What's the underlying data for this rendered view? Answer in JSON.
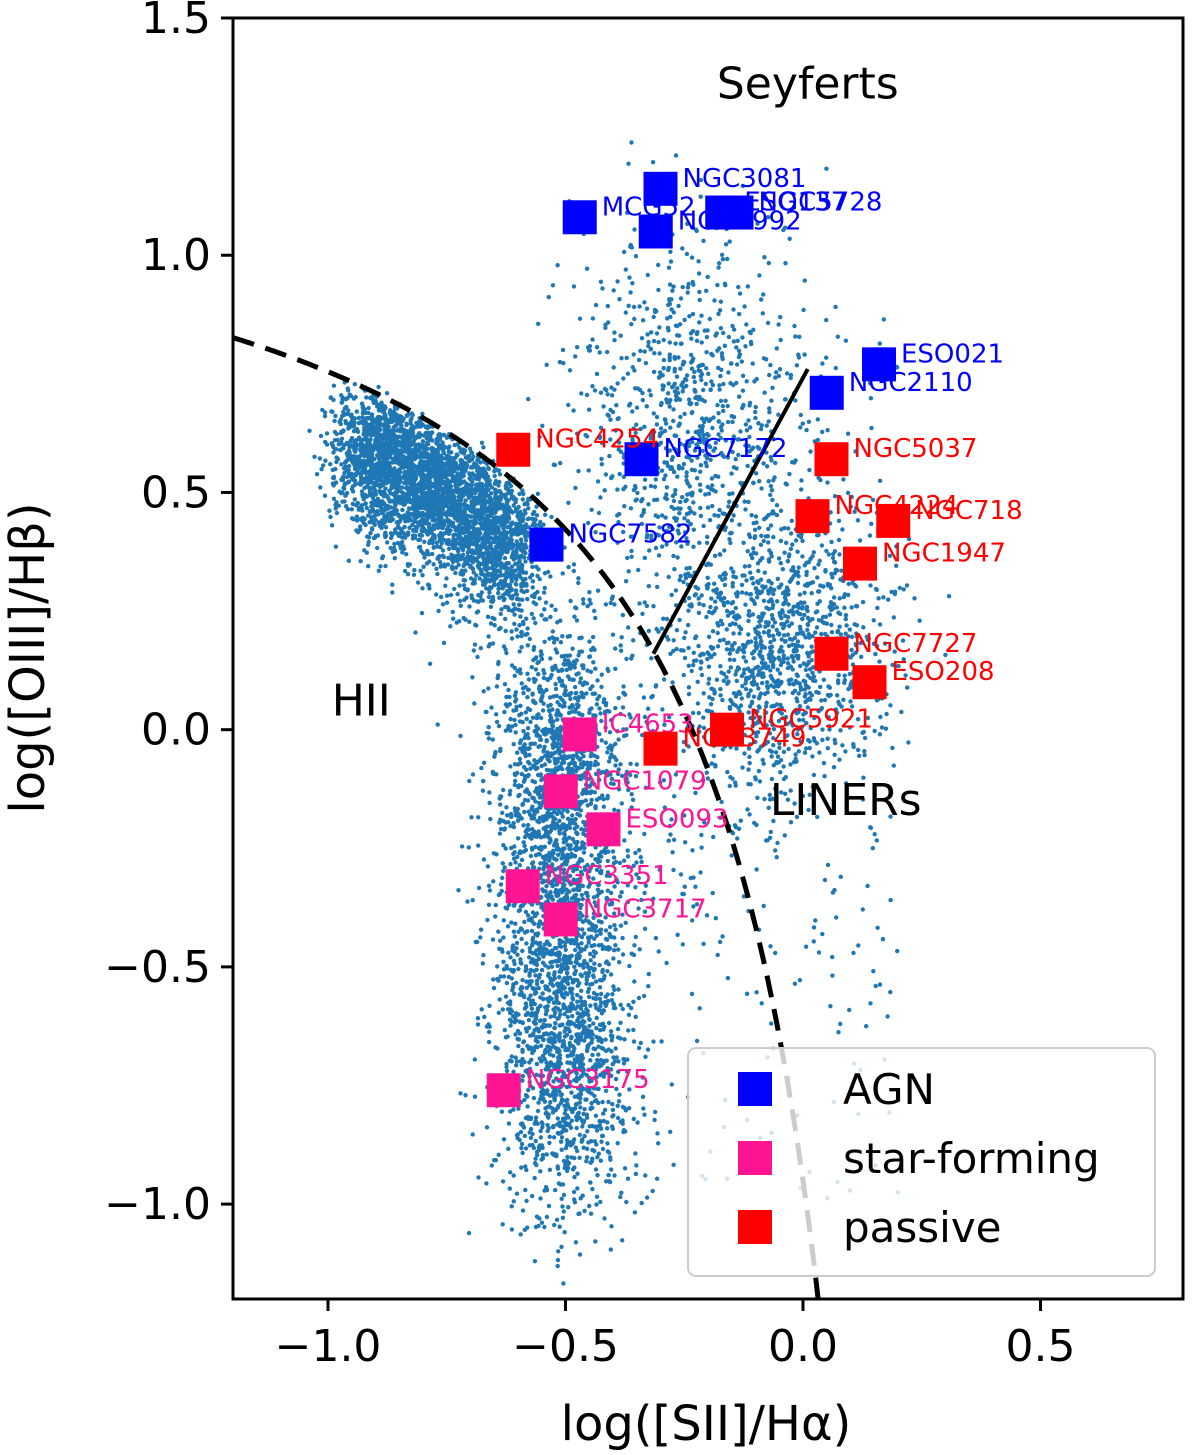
{
  "chart_data": {
    "type": "scatter",
    "xlabel": "log([SII]/Hα)",
    "ylabel": "log([OIII]/Hβ)",
    "xlim": [
      -1.2,
      0.8
    ],
    "ylim": [
      -1.2,
      1.5
    ],
    "xticks": [
      -1.0,
      -0.5,
      0.0,
      0.5
    ],
    "yticks": [
      -1.0,
      -0.5,
      0.0,
      0.5,
      1.0,
      1.5
    ],
    "xtick_labels": [
      "−1.0",
      "−0.5",
      "0.0",
      "0.5"
    ],
    "ytick_labels": [
      "−1.0",
      "−0.5",
      "0.0",
      "0.5",
      "1.0",
      "1.5"
    ],
    "grid": false,
    "legend_position": "bottom-right",
    "colors": {
      "background_points": "#1f77b4",
      "AGN": "#0000ff",
      "star-forming": "#ff1493",
      "passive": "#ff0000",
      "lines": "#000000"
    },
    "region_labels": [
      {
        "text": "Seyferts",
        "x": 0.01,
        "y": 1.33
      },
      {
        "text": "HII",
        "x": -0.93,
        "y": 0.03
      },
      {
        "text": "LINERs",
        "x": 0.09,
        "y": -0.18
      }
    ],
    "demarcation_lines": [
      {
        "name": "HII-boundary",
        "style": "dashed",
        "description": "Kewley 2001 maximum starburst line: y = 0.72/(x-0.32)+1.30 for x<0.05"
      },
      {
        "name": "Seyfert-LINER",
        "style": "solid",
        "points": [
          [
            -0.315,
            0.16
          ],
          [
            0.01,
            0.76
          ]
        ]
      }
    ],
    "background_sample": {
      "description": "dense SDSS-like galaxy cloud",
      "count": 9000
    },
    "legend": [
      {
        "label": "AGN",
        "color": "#0000ff"
      },
      {
        "label": "star-forming",
        "color": "#ff1493"
      },
      {
        "label": "passive",
        "color": "#ff0000"
      }
    ],
    "series": [
      {
        "name": "AGN",
        "color": "#0000ff",
        "points": [
          {
            "label": "NGC3081",
            "x": -0.3,
            "y": 1.14
          },
          {
            "label": "MCG52",
            "x": -0.47,
            "y": 1.08
          },
          {
            "label": "NGC2992",
            "x": -0.31,
            "y": 1.05
          },
          {
            "label": "ESO137",
            "x": -0.17,
            "y": 1.09
          },
          {
            "label": "NGC5728",
            "x": -0.14,
            "y": 1.09
          },
          {
            "label": "ESO021",
            "x": 0.16,
            "y": 0.77
          },
          {
            "label": "NGC2110",
            "x": 0.05,
            "y": 0.71
          },
          {
            "label": "NGC7172",
            "x": -0.34,
            "y": 0.57
          },
          {
            "label": "NGC7582",
            "x": -0.54,
            "y": 0.39
          }
        ]
      },
      {
        "name": "star-forming",
        "color": "#ff1493",
        "points": [
          {
            "label": "IC4653",
            "x": -0.47,
            "y": -0.01
          },
          {
            "label": "NGC1079",
            "x": -0.51,
            "y": -0.13
          },
          {
            "label": "ESO093",
            "x": -0.42,
            "y": -0.21
          },
          {
            "label": "NGC3351",
            "x": -0.59,
            "y": -0.33
          },
          {
            "label": "NGC3717",
            "x": -0.51,
            "y": -0.4
          },
          {
            "label": "NGC3175",
            "x": -0.63,
            "y": -0.76
          }
        ]
      },
      {
        "name": "passive",
        "color": "#ff0000",
        "points": [
          {
            "label": "NGC4254",
            "x": -0.61,
            "y": 0.59
          },
          {
            "label": "NGC5037",
            "x": 0.06,
            "y": 0.57
          },
          {
            "label": "NGC4224",
            "x": 0.02,
            "y": 0.45
          },
          {
            "label": "NGC718",
            "x": 0.19,
            "y": 0.44
          },
          {
            "label": "NGC1947",
            "x": 0.12,
            "y": 0.35
          },
          {
            "label": "NGC7727",
            "x": 0.06,
            "y": 0.16
          },
          {
            "label": "ESO208",
            "x": 0.14,
            "y": 0.1
          },
          {
            "label": "NGC5921",
            "x": -0.16,
            "y": 0.0
          },
          {
            "label": "NGC3749",
            "x": -0.3,
            "y": -0.04
          }
        ]
      }
    ]
  }
}
